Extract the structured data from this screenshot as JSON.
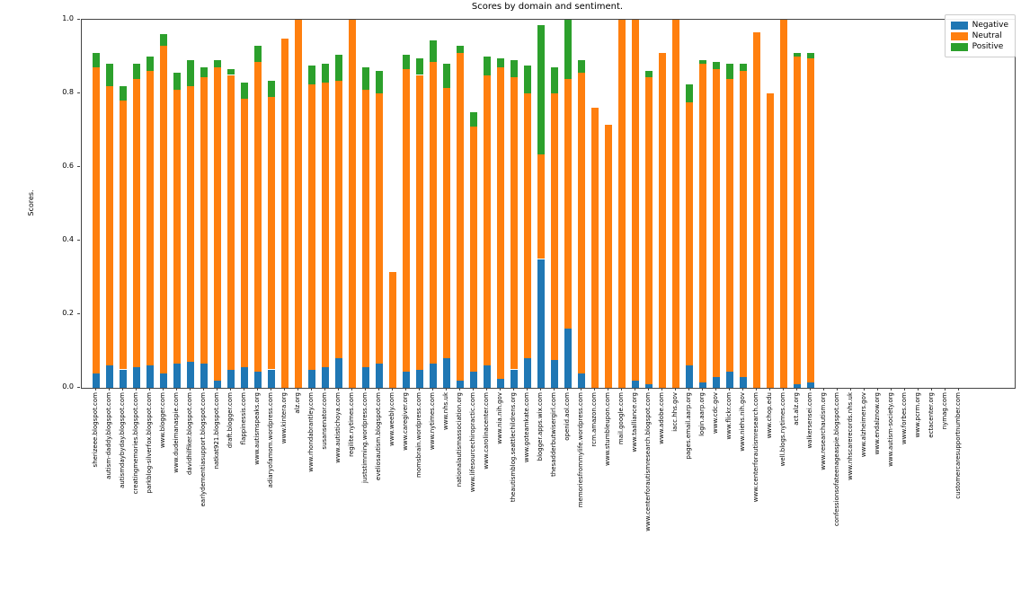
{
  "title": "Scores by domain and sentiment.",
  "ylabel": "Scores.",
  "legend": {
    "entries": [
      {
        "label": "Negative",
        "color": "#1f77b4"
      },
      {
        "label": "Neutral",
        "color": "#ff7f0e"
      },
      {
        "label": "Positive",
        "color": "#2ca02c"
      }
    ]
  },
  "chart_data": {
    "type": "bar",
    "stacked": true,
    "title": "Scores by domain and sentiment.",
    "xlabel": "",
    "ylabel": "Scores.",
    "ylim": [
      0.0,
      1.0
    ],
    "yticks": [
      "0.0",
      "0.2",
      "0.4",
      "0.6",
      "0.8",
      "1.0"
    ],
    "grid": false,
    "legend_position": "upper right",
    "categories": [
      "sherizeee.blogspot.com",
      "autism-daddy.blogspot.com",
      "autismdaybyday.blogspot.com",
      "creatingmemories.blogspot.com",
      "parkblog-silverfox.blogspot.com",
      "www.blogger.com",
      "www.dudeimanaspie.com",
      "davidhilfiker.blogspot.com",
      "earlydementiasupport.blogspot.com",
      "natkat921.blogspot.com",
      "draft.blogger.com",
      "flappinessis.com",
      "www.autismspeaks.org",
      "adiaryofamom.wordpress.com",
      "www.kintera.org",
      "alz.org",
      "www.rhondabrantley.com",
      "susansenator.com",
      "www.autistichoya.com",
      "regilite.nytimes.com",
      "juststimming.wordpress.com",
      "eveliosautism.blogspot.com",
      "www.weebly.com",
      "www.caregiver.org",
      "momsbrain.wordpress.com",
      "www.nytimes.com",
      "www.nhs.uk",
      "nationalautismassociation.org",
      "www.lifesourcechiropractic.com",
      "www.carolinacenter.com",
      "www.nia.nih.gov",
      "theautismblog.seattlechildrens.org",
      "www.goteamkate.com",
      "blogger.apps.wix.com",
      "thesadderbutwisergirl.com",
      "openid.aol.com",
      "memoriesfrommylife.wordpress.com",
      "rcm.amazon.com",
      "www.stumbleupon.com",
      "mail.google.com",
      "www.taalliance.org",
      "www.centerforautismresearch.blogspot.com",
      "www.adobe.com",
      "iacc.hhs.gov",
      "pages.email.aarp.org",
      "login.aarp.org",
      "www.cdc.gov",
      "www.flickr.com",
      "www.niehs.nih.gov",
      "www.centerforautismresearch.com",
      "www.chop.edu",
      "well.blogs.nytimes.com",
      "act.alz.org",
      "walkersensei.com",
      "www.researchautism.org",
      "confessionsofateenageaspie.blogspot.com",
      "www.nhscarerecords.nhs.uk",
      "www.alzheimers.gov",
      "www.endalznow.org",
      "www.autism-society.org",
      "www.forbes.com",
      "www.pcrm.org",
      "ectacenter.org",
      "nymag.com",
      "customercaresupportnumber.com"
    ],
    "series": [
      {
        "name": "Negative",
        "color": "#1f77b4",
        "values": [
          0.04,
          0.06,
          0.05,
          0.055,
          0.06,
          0.04,
          0.065,
          0.07,
          0.065,
          0.02,
          0.05,
          0.055,
          0.045,
          0.05,
          0,
          0,
          0.05,
          0.055,
          0.08,
          0,
          0.055,
          0.065,
          0,
          0.045,
          0.05,
          0.065,
          0.08,
          0.02,
          0.045,
          0.06,
          0.025,
          0.05,
          0.08,
          0.35,
          0.075,
          0.16,
          0.04,
          0,
          0,
          0,
          0.02,
          0.01,
          0,
          0,
          0.06,
          0.015,
          0.03,
          0.045,
          0.03,
          0,
          0,
          0,
          0.01,
          0.015,
          0,
          0,
          0,
          0,
          0,
          0,
          0,
          0,
          0,
          0,
          0
        ]
      },
      {
        "name": "Neutral",
        "color": "#ff7f0e",
        "values": [
          0.83,
          0.76,
          0.73,
          0.785,
          0.8,
          0.89,
          0.745,
          0.75,
          0.78,
          0.85,
          0.8,
          0.73,
          0.84,
          0.74,
          0.95,
          1.0,
          0.775,
          0.775,
          0.755,
          1.0,
          0.755,
          0.735,
          0.315,
          0.82,
          0.8,
          0.82,
          0.735,
          0.89,
          0.665,
          0.79,
          0.845,
          0.795,
          0.72,
          0.285,
          0.725,
          0.68,
          0.815,
          0.76,
          0.715,
          1.0,
          0.98,
          0.835,
          0.91,
          1.0,
          0.715,
          0.865,
          0.835,
          0.795,
          0.83,
          0.965,
          0.8,
          1.0,
          0.89,
          0.88,
          0,
          0,
          0,
          0,
          0,
          0,
          0,
          0,
          0,
          0,
          0
        ]
      },
      {
        "name": "Positive",
        "color": "#2ca02c",
        "values": [
          0.04,
          0.06,
          0.04,
          0.04,
          0.04,
          0.03,
          0.045,
          0.07,
          0.025,
          0.02,
          0.015,
          0.045,
          0.045,
          0.045,
          0,
          0,
          0.05,
          0.05,
          0.07,
          0,
          0.06,
          0.06,
          0,
          0.04,
          0.045,
          0.06,
          0.065,
          0.02,
          0.04,
          0.05,
          0.025,
          0.045,
          0.075,
          0.35,
          0.07,
          0.16,
          0.035,
          0,
          0,
          0,
          0,
          0.015,
          0,
          0,
          0.05,
          0.01,
          0.02,
          0.04,
          0.02,
          0,
          0,
          0,
          0.01,
          0.015,
          0,
          0,
          0,
          0,
          0,
          0,
          0,
          0,
          0,
          0,
          0
        ]
      }
    ]
  }
}
